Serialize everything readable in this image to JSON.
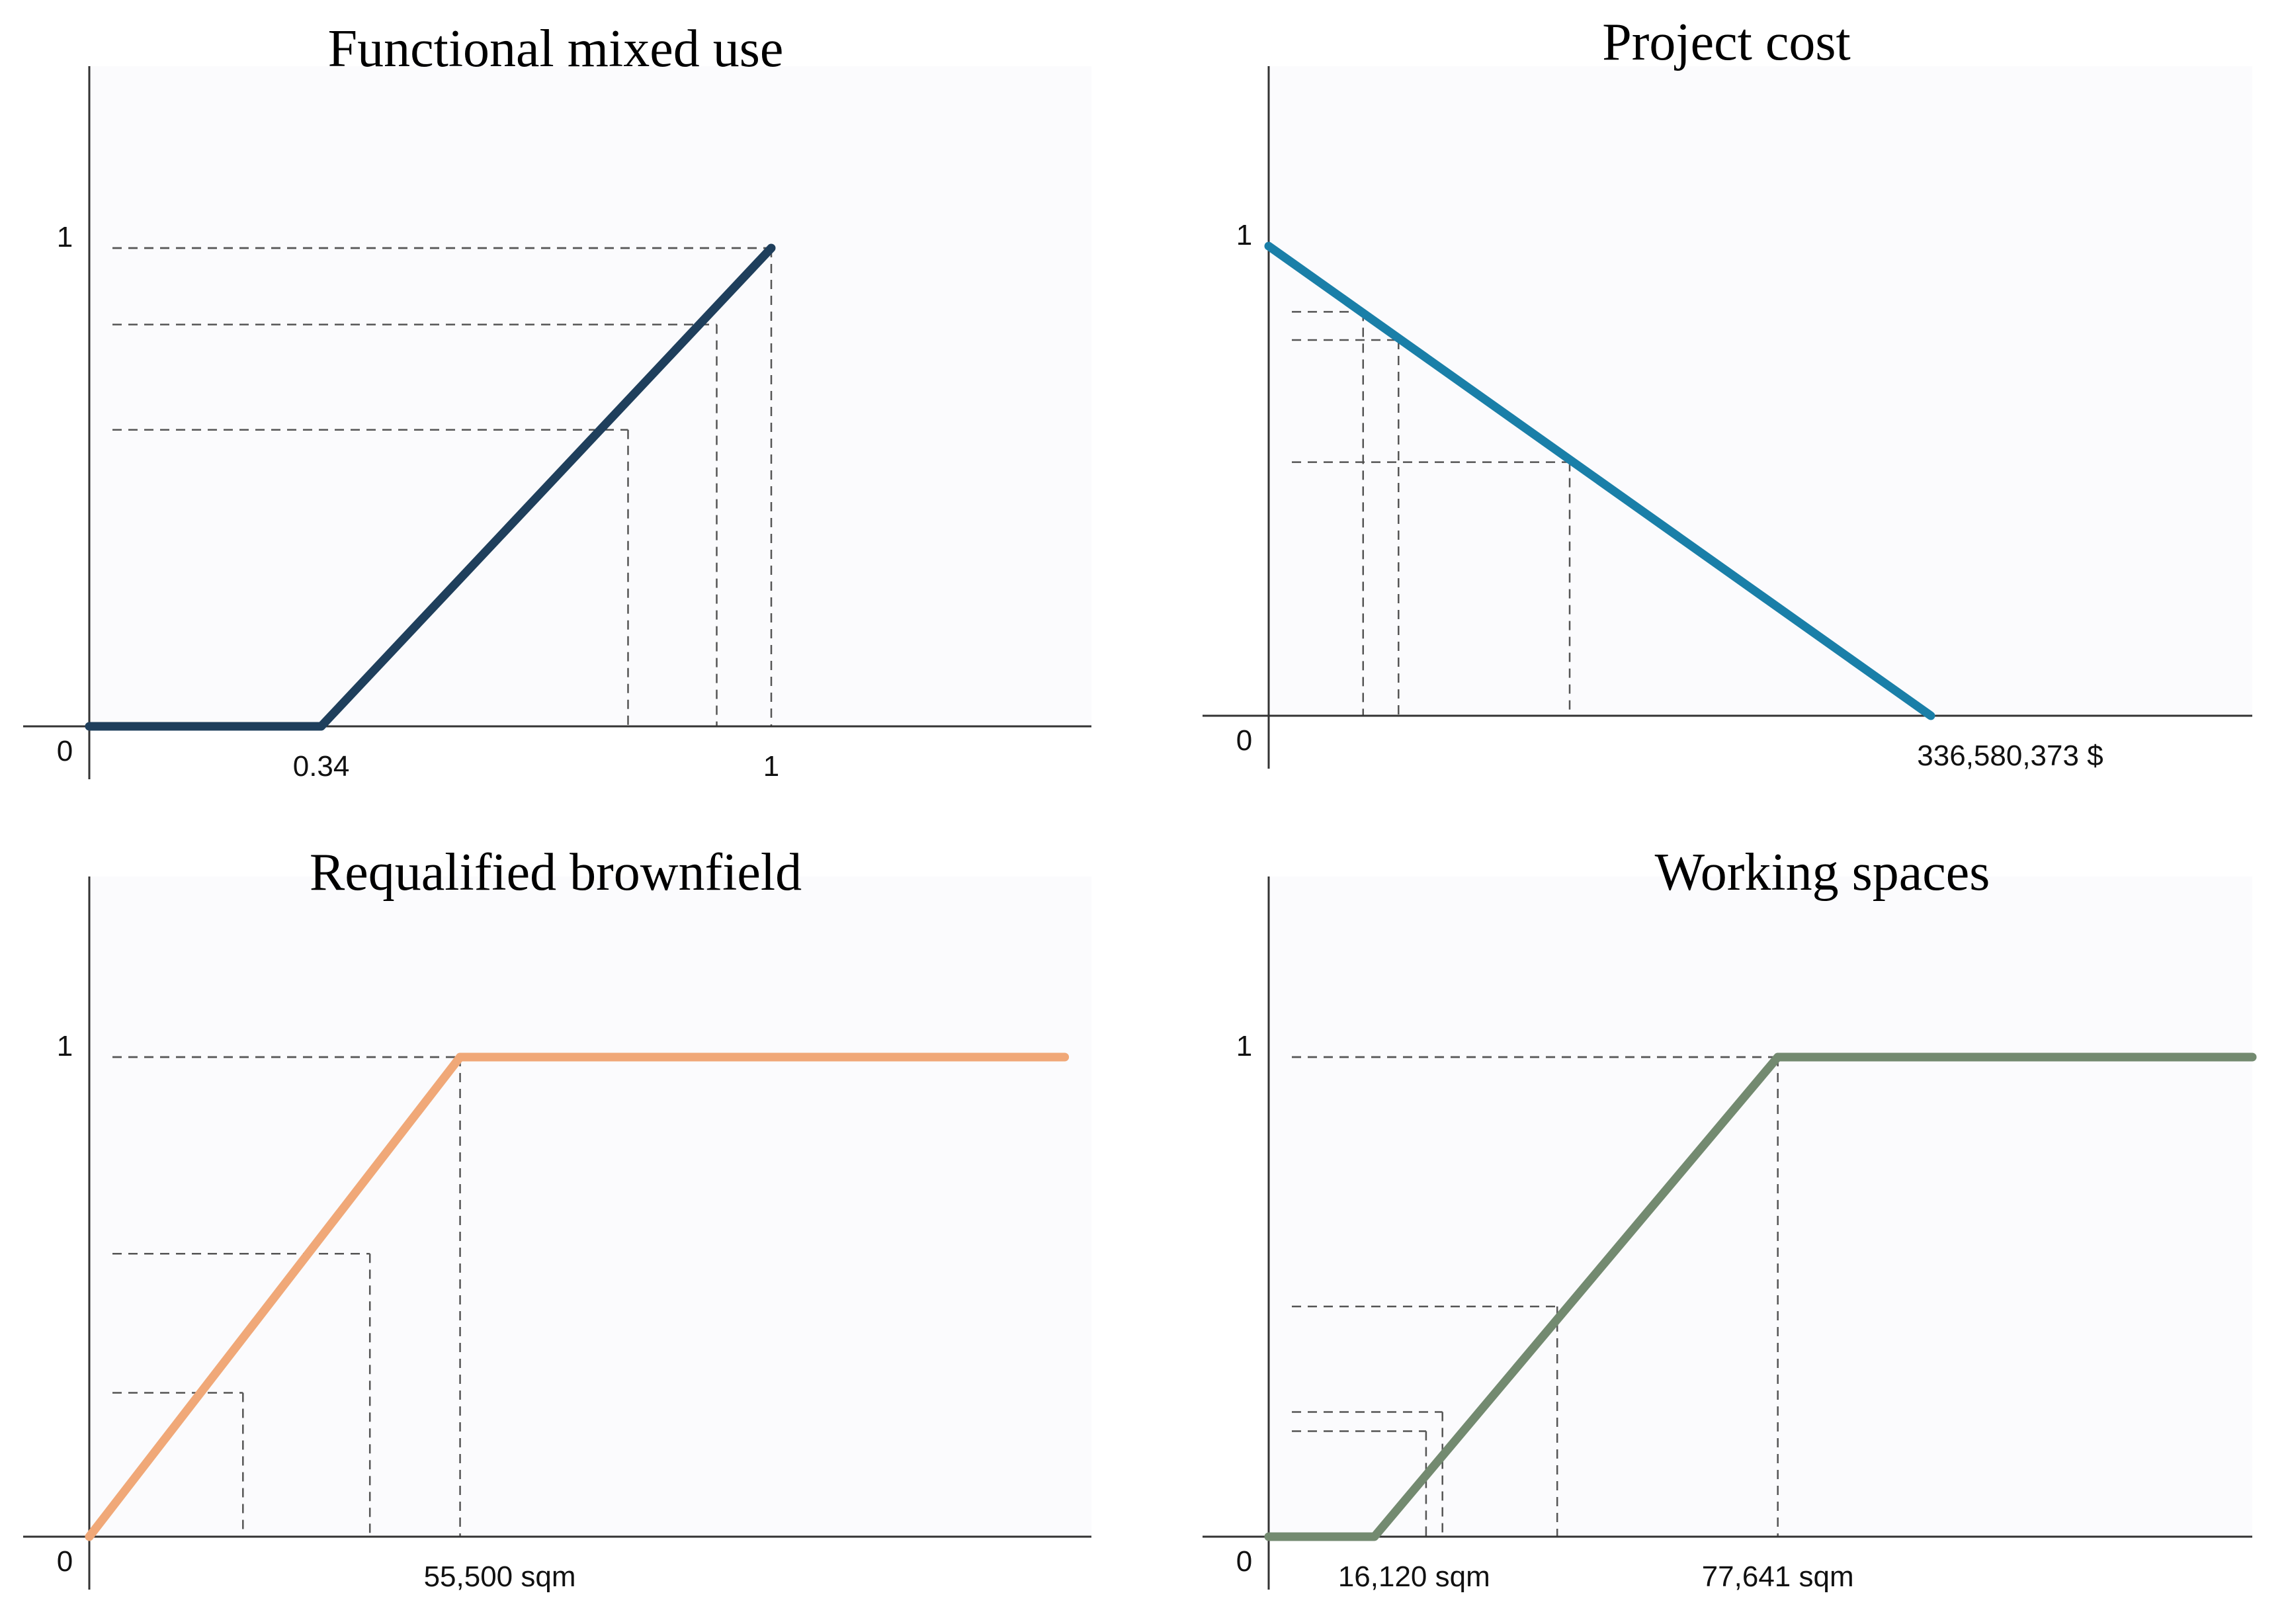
{
  "chart_data": [
    {
      "type": "line",
      "title": "Functional mixed use",
      "color": "#1f3f5c",
      "x_domain": [
        0,
        1.5
      ],
      "x": [
        0,
        0.34,
        1
      ],
      "y": [
        0,
        0,
        1
      ],
      "x_ticks": [
        0.34,
        1
      ],
      "x_tick_labels": [
        "0.34",
        "1"
      ],
      "y_ticks": [
        1
      ],
      "y_tick_labels": [
        "1"
      ],
      "origin_label": "0",
      "guides": [
        {
          "x": 0.79,
          "y": 0.62
        },
        {
          "x": 0.92,
          "y": 0.84
        },
        {
          "x": 1,
          "y": 1
        }
      ]
    },
    {
      "type": "line",
      "title": "Project cost",
      "color": "#1a7fa8",
      "x_domain": [
        0,
        500000000
      ],
      "x": [
        0,
        336580373
      ],
      "y": [
        1,
        0
      ],
      "x_ticks": [
        336580373
      ],
      "x_tick_labels": [
        "336,580,373 $"
      ],
      "y_ticks": [
        1
      ],
      "y_tick_labels": [
        "1"
      ],
      "origin_label": "0",
      "guides": [
        {
          "x": 48000000,
          "y": 0.86
        },
        {
          "x": 66000000,
          "y": 0.8
        },
        {
          "x": 153000000,
          "y": 0.54
        }
      ]
    },
    {
      "type": "line",
      "title": "Requalified brownfield",
      "color": "#f0a878",
      "x_domain": [
        0,
        150000
      ],
      "x": [
        0,
        55500,
        146000
      ],
      "y": [
        0,
        1,
        1
      ],
      "x_ticks": [
        55500
      ],
      "x_tick_labels": [
        "55,500 sqm"
      ],
      "y_ticks": [
        1
      ],
      "y_tick_labels": [
        "1"
      ],
      "origin_label": "0",
      "guides": [
        {
          "x": 23000,
          "y": 0.3
        },
        {
          "x": 42000,
          "y": 0.59
        },
        {
          "x": 55500,
          "y": 1
        }
      ]
    },
    {
      "type": "line",
      "title": "Working spaces",
      "color": "#738a70",
      "x_domain": [
        0,
        150000
      ],
      "x": [
        0,
        16120,
        77641,
        150000
      ],
      "y": [
        0,
        0,
        1,
        1
      ],
      "x_ticks": [
        16120,
        77641
      ],
      "x_tick_labels": [
        "16,120 sqm",
        "77,641 sqm"
      ],
      "y_ticks": [
        1
      ],
      "y_tick_labels": [
        "1"
      ],
      "origin_label": "0",
      "guides": [
        {
          "x": 24000,
          "y": 0.22
        },
        {
          "x": 26500,
          "y": 0.26
        },
        {
          "x": 44000,
          "y": 0.48
        },
        {
          "x": 77641,
          "y": 1
        }
      ]
    }
  ]
}
